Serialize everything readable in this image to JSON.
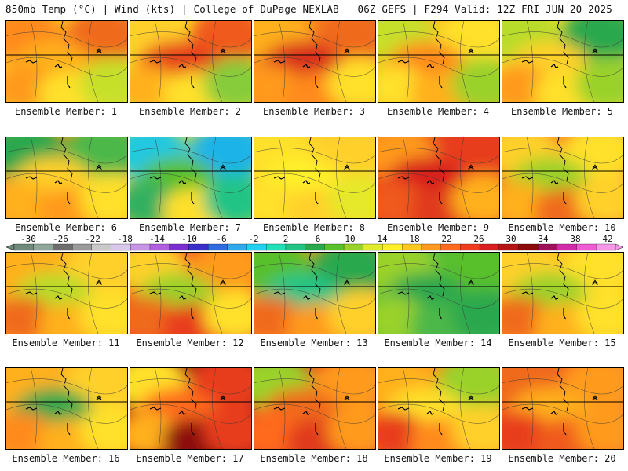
{
  "header": {
    "left": "850mb Temp (°C) | Wind (kts) | College of DuPage NEXLAB",
    "right": "06Z GEFS | F294 Valid: 12Z FRI JUN 20 2025"
  },
  "colorbar": {
    "ticks": [
      "-30",
      "-26",
      "-22",
      "-18",
      "-14",
      "-10",
      "-6",
      "-2",
      "2",
      "6",
      "10",
      "14",
      "18",
      "22",
      "26",
      "30",
      "34",
      "38",
      "42"
    ],
    "colors": [
      "#6f8a7a",
      "#8fa79a",
      "#6e6e6e",
      "#9a9a9a",
      "#c9c9c9",
      "#d8c8ea",
      "#c695e6",
      "#b15fe0",
      "#7b2fd0",
      "#3a2fc8",
      "#2f6be0",
      "#2fa8ec",
      "#20d2f0",
      "#20e0b8",
      "#22c486",
      "#2aa84e",
      "#58c02a",
      "#9ad22a",
      "#e0ec2a",
      "#fff02a",
      "#ffc81e",
      "#ff9a1e",
      "#ff6a1e",
      "#f03c1e",
      "#d81e1e",
      "#b41414",
      "#8c0a0a",
      "#a0105a",
      "#d22aa8",
      "#f05ad2",
      "#f896e8"
    ]
  },
  "members": [
    {
      "label": "Ensemble Member: 1",
      "colors": [
        "#ff8a1e",
        "#f06a1e",
        "#ffb01e",
        "#ff9a1e",
        "#ffe02a",
        "#c6e02a"
      ]
    },
    {
      "label": "Ensemble Member: 2",
      "colors": [
        "#ffd02a",
        "#f05a1e",
        "#e63c1e",
        "#ffb01e",
        "#ffe02a",
        "#86cc3a"
      ]
    },
    {
      "label": "Ensemble Member: 3",
      "colors": [
        "#ffb01e",
        "#f06a1e",
        "#d82a1e",
        "#ff9a1e",
        "#ff8a1e",
        "#ffe02a"
      ]
    },
    {
      "label": "Ensemble Member: 4",
      "colors": [
        "#c6e02a",
        "#ffe02a",
        "#ff8a1e",
        "#ffe02a",
        "#ffb01e",
        "#9ad22a"
      ]
    },
    {
      "label": "Ensemble Member: 5",
      "colors": [
        "#b8dc2a",
        "#2aa84e",
        "#ffd02a",
        "#ff9a1e",
        "#ffe02a",
        "#9ad22a"
      ]
    },
    {
      "label": "Ensemble Member: 6",
      "colors": [
        "#2aa84e",
        "#4cb84a",
        "#ffd02a",
        "#ffb01e",
        "#ff9a1e",
        "#ffe02a"
      ]
    },
    {
      "label": "Ensemble Member: 7",
      "colors": [
        "#20c8e0",
        "#1eb4e8",
        "#58c02a",
        "#30b060",
        "#ffe02a",
        "#22c486"
      ]
    },
    {
      "label": "Ensemble Member: 8",
      "colors": [
        "#ffe02a",
        "#ffd02a",
        "#fff02a",
        "#ffe02a",
        "#ffd02a",
        "#e6e82a"
      ]
    },
    {
      "label": "Ensemble Member: 9",
      "colors": [
        "#ff9a1e",
        "#e83c1e",
        "#d81e1e",
        "#f05a1e",
        "#e03a1e",
        "#ffb01e"
      ]
    },
    {
      "label": "Ensemble Member: 10",
      "colors": [
        "#ffd02a",
        "#ffe02a",
        "#9ad22a",
        "#ffb01e",
        "#f06a1e",
        "#ffd02a"
      ]
    },
    {
      "label": "Ensemble Member: 11",
      "colors": [
        "#ffb01e",
        "#ffd02a",
        "#b8dc2a",
        "#f06a1e",
        "#ffb01e",
        "#ffe02a"
      ]
    },
    {
      "label": "Ensemble Member: 12",
      "colors": [
        "#ffd02a",
        "#ff9a1e",
        "#9ad22a",
        "#f06a1e",
        "#e83c1e",
        "#ffe02a"
      ]
    },
    {
      "label": "Ensemble Member: 13",
      "colors": [
        "#58c02a",
        "#2aa84e",
        "#22c486",
        "#f06a1e",
        "#ff9a1e",
        "#ffd02a"
      ]
    },
    {
      "label": "Ensemble Member: 14",
      "colors": [
        "#9ad22a",
        "#58c02a",
        "#2aa84e",
        "#9ad22a",
        "#4cb84a",
        "#2aa84e"
      ]
    },
    {
      "label": "Ensemble Member: 15",
      "colors": [
        "#ffd02a",
        "#ffe02a",
        "#9ad22a",
        "#f06a1e",
        "#ffb01e",
        "#ffe02a"
      ]
    },
    {
      "label": "Ensemble Member: 16",
      "colors": [
        "#ffb01e",
        "#ffd02a",
        "#2aa84e",
        "#ff8a1e",
        "#ffb01e",
        "#ffe02a"
      ]
    },
    {
      "label": "Ensemble Member: 17",
      "colors": [
        "#ffe02a",
        "#e83c1e",
        "#ff6a1e",
        "#ffb01e",
        "#8c0a0a",
        "#e83c1e"
      ]
    },
    {
      "label": "Ensemble Member: 18",
      "colors": [
        "#9ad22a",
        "#ff9a1e",
        "#f06a1e",
        "#ff6a1e",
        "#e03a1e",
        "#ff9a1e"
      ]
    },
    {
      "label": "Ensemble Member: 19",
      "colors": [
        "#ffb01e",
        "#9ad22a",
        "#ffe02a",
        "#e83c1e",
        "#ff8a1e",
        "#ffd02a"
      ]
    },
    {
      "label": "Ensemble Member: 20",
      "colors": [
        "#f06a1e",
        "#ff9a1e",
        "#ffb01e",
        "#e83c1e",
        "#f05a1e",
        "#ff9a1e"
      ]
    }
  ]
}
